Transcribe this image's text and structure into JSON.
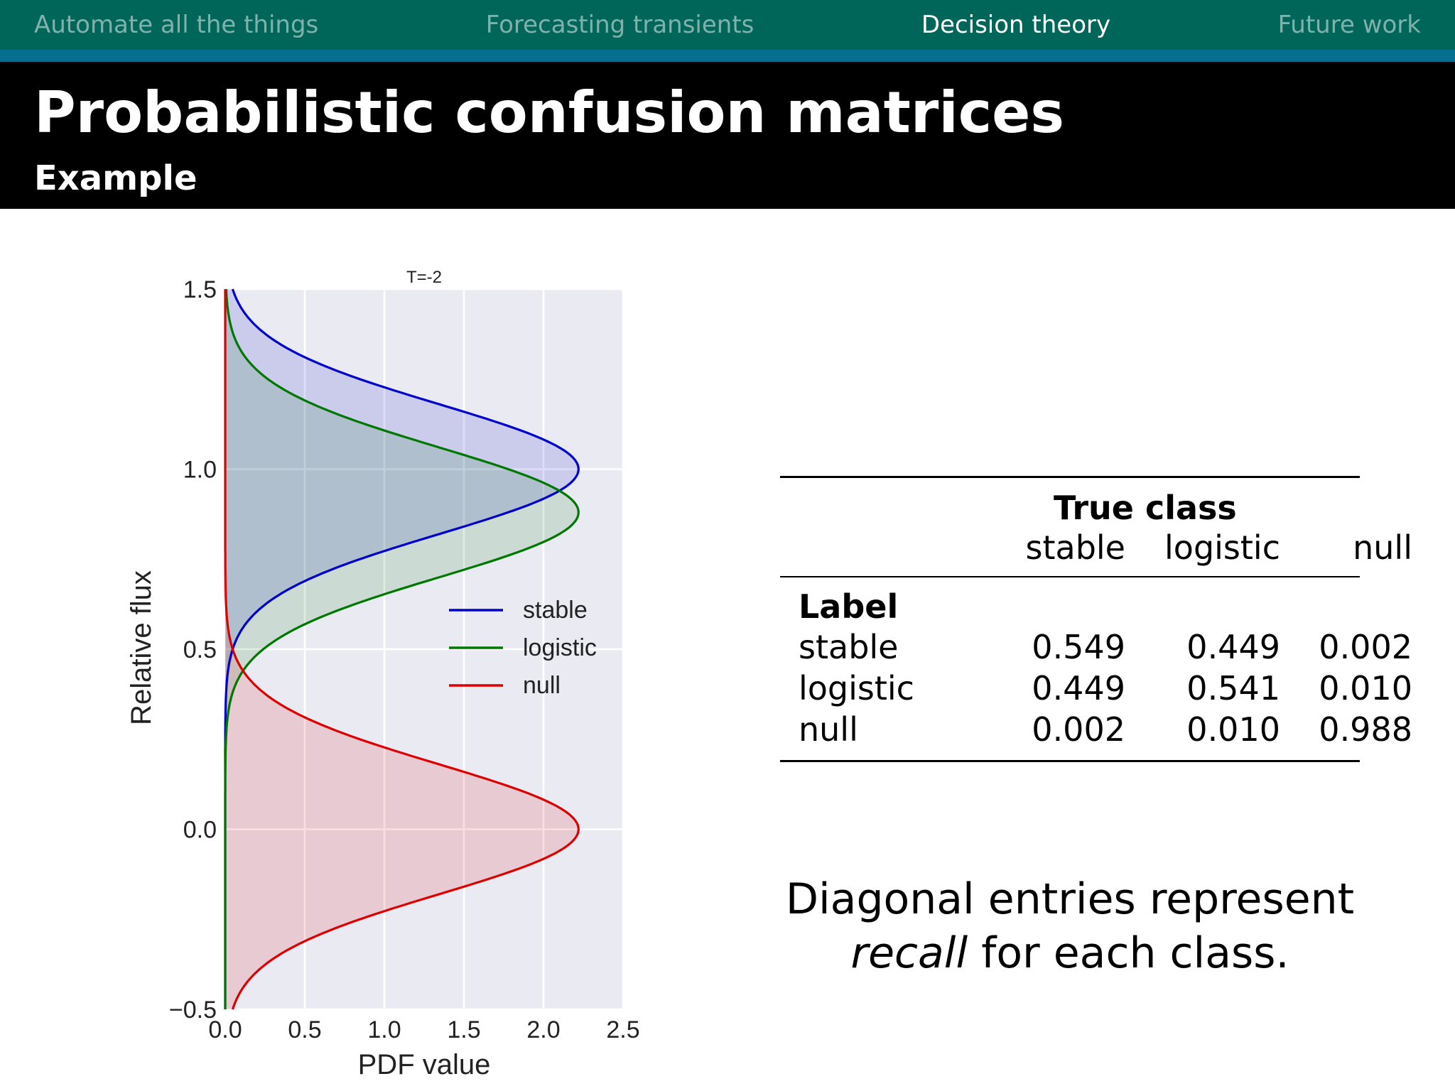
{
  "nav": {
    "items": [
      "Automate all the things",
      "Forecasting transients",
      "Decision theory",
      "Future work"
    ],
    "active_index": 2
  },
  "header": {
    "title": "Probabilistic confusion matrices",
    "subtitle": "Example"
  },
  "table": {
    "group_header": "True class",
    "columns": [
      "stable",
      "logistic",
      "null"
    ],
    "row_group_label": "Label",
    "rows": [
      {
        "label": "stable",
        "values": [
          "0.549",
          "0.449",
          "0.002"
        ]
      },
      {
        "label": "logistic",
        "values": [
          "0.449",
          "0.541",
          "0.010"
        ]
      },
      {
        "label": "null",
        "values": [
          "0.002",
          "0.010",
          "0.988"
        ]
      }
    ]
  },
  "caption": {
    "line1": "Diagonal entries represent",
    "emphasis": "recall",
    "line2_rest": " for each class."
  },
  "colors": {
    "nav_bg": "#00665a",
    "nav_strip": "#066e8e",
    "plot_bg": "#eaeaf2",
    "stable": "#0000cc",
    "logistic": "#007700",
    "null": "#dd0000"
  },
  "chart_data": {
    "type": "line",
    "orientation": "horizontal-pdf",
    "title": "T=-2",
    "xlabel": "PDF value",
    "ylabel": "Relative flux",
    "xlim": [
      0.0,
      2.5
    ],
    "ylim": [
      -0.5,
      1.5
    ],
    "xticks": [
      "0.0",
      "0.5",
      "1.0",
      "1.5",
      "2.0",
      "2.5"
    ],
    "yticks": [
      "−0.5",
      "0.0",
      "0.5",
      "1.0",
      "1.5"
    ],
    "grid": true,
    "legend_position": "center-right",
    "series": [
      {
        "name": "stable",
        "color": "#0000cc",
        "mean": 1.0,
        "peak": 2.22,
        "sigma": 0.18
      },
      {
        "name": "logistic",
        "color": "#007700",
        "mean": 0.88,
        "peak": 2.22,
        "sigma": 0.18
      },
      {
        "name": "null",
        "color": "#dd0000",
        "mean": 0.0,
        "peak": 2.22,
        "sigma": 0.18
      }
    ]
  }
}
